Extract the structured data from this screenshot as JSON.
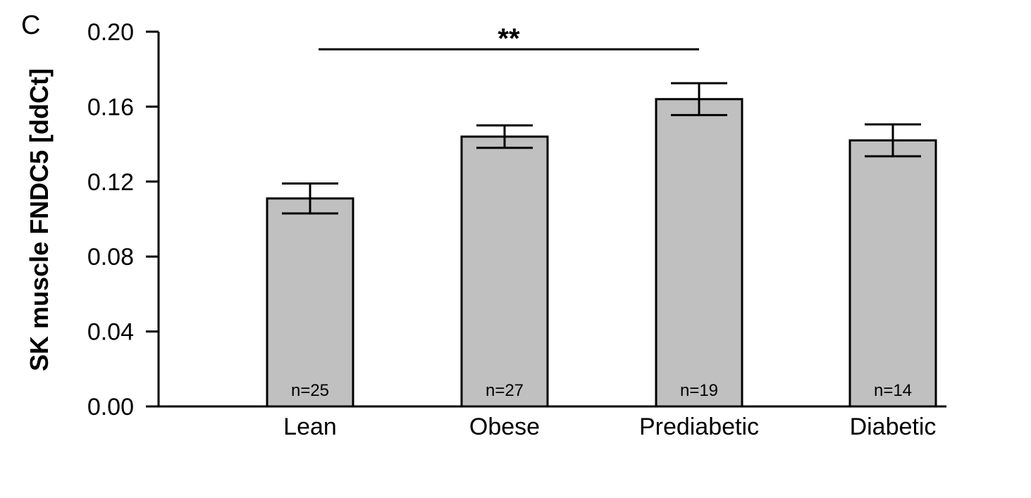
{
  "panel_label": "C",
  "chart_data": {
    "type": "bar",
    "title": "",
    "xlabel": "",
    "ylabel": "SK muscle FNDC5 [ddCt]",
    "ylim": [
      0,
      0.2
    ],
    "yticks": [
      "0.00",
      "0.04",
      "0.08",
      "0.12",
      "0.16",
      "0.20"
    ],
    "categories": [
      "Lean",
      "Obese",
      "Prediabetic",
      "Diabetic"
    ],
    "values": [
      0.111,
      0.144,
      0.164,
      0.142
    ],
    "error": [
      0.008,
      0.006,
      0.0085,
      0.0085
    ],
    "n_labels": [
      "n=25",
      "n=27",
      "n=19",
      "n=14"
    ],
    "bar_color": "#c0c0c0",
    "grid": false,
    "significance": {
      "from": "Lean",
      "to": "Prediabetic",
      "label": "**"
    }
  }
}
